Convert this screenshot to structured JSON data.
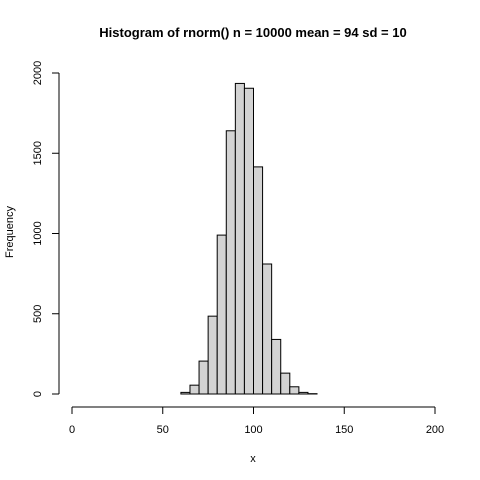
{
  "chart_data": {
    "type": "bar",
    "title": "Histogram of rnorm() n =  10000  mean =  94  sd =  10",
    "xlabel": "x",
    "ylabel": "Frequency",
    "xlim": [
      0,
      200
    ],
    "ylim": [
      0,
      2000
    ],
    "x_ticks": [
      0,
      50,
      100,
      150,
      200
    ],
    "y_ticks": [
      0,
      500,
      1000,
      1500,
      2000
    ],
    "bin_width": 5,
    "bins": [
      {
        "from": 60,
        "to": 65,
        "value": 10
      },
      {
        "from": 65,
        "to": 70,
        "value": 55
      },
      {
        "from": 70,
        "to": 75,
        "value": 205
      },
      {
        "from": 75,
        "to": 80,
        "value": 485
      },
      {
        "from": 80,
        "to": 85,
        "value": 990
      },
      {
        "from": 85,
        "to": 90,
        "value": 1640
      },
      {
        "from": 90,
        "to": 95,
        "value": 1935
      },
      {
        "from": 95,
        "to": 100,
        "value": 1905
      },
      {
        "from": 100,
        "to": 105,
        "value": 1415
      },
      {
        "from": 105,
        "to": 110,
        "value": 810
      },
      {
        "from": 110,
        "to": 115,
        "value": 340
      },
      {
        "from": 115,
        "to": 120,
        "value": 130
      },
      {
        "from": 120,
        "to": 125,
        "value": 45
      },
      {
        "from": 125,
        "to": 130,
        "value": 10
      },
      {
        "from": 130,
        "to": 135,
        "value": 2
      }
    ],
    "grid": false,
    "bar_fill": "#d3d3d3",
    "bar_stroke": "#000000"
  }
}
